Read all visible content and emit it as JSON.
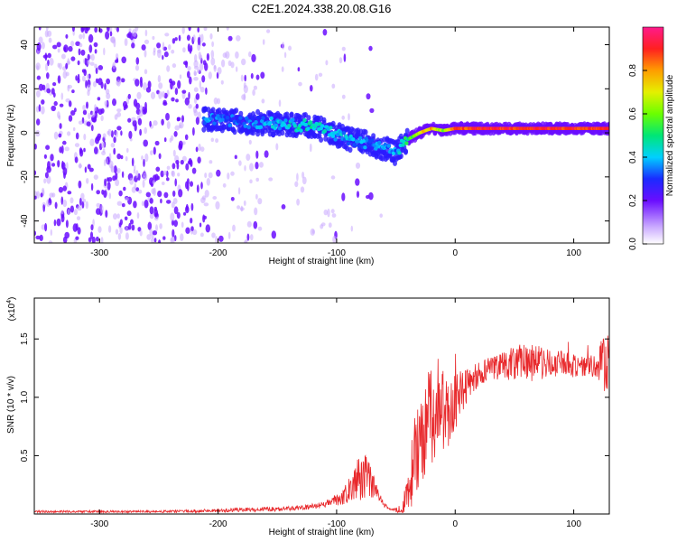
{
  "title": "C2E1.2024.338.20.08.G16",
  "colors": {
    "snr_line": "#e8282b",
    "scatter_dense": "#6a0dff",
    "scatter_light": "#c9a8ff"
  },
  "chart_data": [
    {
      "type": "heatmap",
      "title": "C2E1.2024.338.20.08.G16",
      "xlabel": "Height of straight line (km)",
      "ylabel": "Frequency (Hz)",
      "xlim": [
        -355,
        130
      ],
      "ylim": [
        -50,
        48
      ],
      "x_ticks": [
        -300,
        -200,
        -100,
        0,
        100
      ],
      "y_ticks": [
        -40,
        -20,
        0,
        20,
        40
      ],
      "grid": false,
      "colorbar": {
        "label": "Normalized spectral amplitude",
        "range": [
          0.0,
          1.0
        ],
        "ticks": [
          0.0,
          0.2,
          0.4,
          0.6,
          0.8
        ],
        "colormap": "rainbow"
      },
      "ridge": {
        "x": [
          -210,
          -180,
          -150,
          -120,
          -100,
          -80,
          -60,
          -50,
          -40,
          -30,
          -20,
          -10,
          0,
          20,
          40,
          60,
          80,
          100,
          130
        ],
        "y": [
          6,
          5,
          4,
          3,
          -1,
          -4,
          -7,
          -9,
          -3,
          0,
          2,
          1,
          2,
          2,
          2,
          2,
          2,
          2,
          2
        ],
        "amplitude": [
          0.35,
          0.3,
          0.4,
          0.45,
          0.4,
          0.35,
          0.35,
          0.35,
          0.5,
          0.7,
          0.8,
          0.6,
          0.85,
          0.9,
          0.9,
          0.9,
          0.9,
          0.9,
          0.9
        ]
      }
    },
    {
      "type": "line",
      "xlabel": "Height of straight line (km)",
      "ylabel": "SNR (10 * v/v)",
      "y_multiplier": "(x10",
      "y_multiplier_exp": "4",
      "y_multiplier_close": ")",
      "xlim": [
        -355,
        130
      ],
      "ylim": [
        0,
        1.85
      ],
      "x_ticks": [
        -300,
        -200,
        -100,
        0,
        100
      ],
      "y_ticks": [
        0.5,
        1.0,
        1.5
      ],
      "y_tick_labels": [
        "0.5",
        "1.0",
        "1.5"
      ],
      "grid": false,
      "series": [
        {
          "x": [
            -355,
            -300,
            -250,
            -200,
            -160,
            -130,
            -110,
            -95,
            -90,
            -85,
            -80,
            -75,
            -70,
            -65,
            -60,
            -55,
            -50,
            -45,
            -40,
            -35,
            -30,
            -25,
            -20,
            -15,
            -10,
            -5,
            0,
            10,
            20,
            30,
            40,
            50,
            60,
            70,
            80,
            90,
            100,
            110,
            120,
            125,
            130
          ],
          "y": [
            0.02,
            0.02,
            0.02,
            0.03,
            0.04,
            0.05,
            0.08,
            0.14,
            0.2,
            0.28,
            0.3,
            0.32,
            0.25,
            0.16,
            0.08,
            0.04,
            0.03,
            0.06,
            0.15,
            0.45,
            0.6,
            0.75,
            0.85,
            0.95,
            0.88,
            0.8,
            0.95,
            1.1,
            1.2,
            1.25,
            1.27,
            1.28,
            1.3,
            1.3,
            1.28,
            1.3,
            1.27,
            1.28,
            1.27,
            1.29,
            1.3
          ],
          "noise_amplitude": [
            0.01,
            0.01,
            0.01,
            0.015,
            0.02,
            0.02,
            0.03,
            0.06,
            0.1,
            0.15,
            0.2,
            0.18,
            0.12,
            0.05,
            0.02,
            0.01,
            0.02,
            0.05,
            0.18,
            0.35,
            0.4,
            0.4,
            0.45,
            0.4,
            0.35,
            0.3,
            0.25,
            0.15,
            0.1,
            0.1,
            0.12,
            0.15,
            0.18,
            0.15,
            0.12,
            0.1,
            0.1,
            0.1,
            0.12,
            0.25,
            0.3
          ]
        }
      ]
    }
  ]
}
